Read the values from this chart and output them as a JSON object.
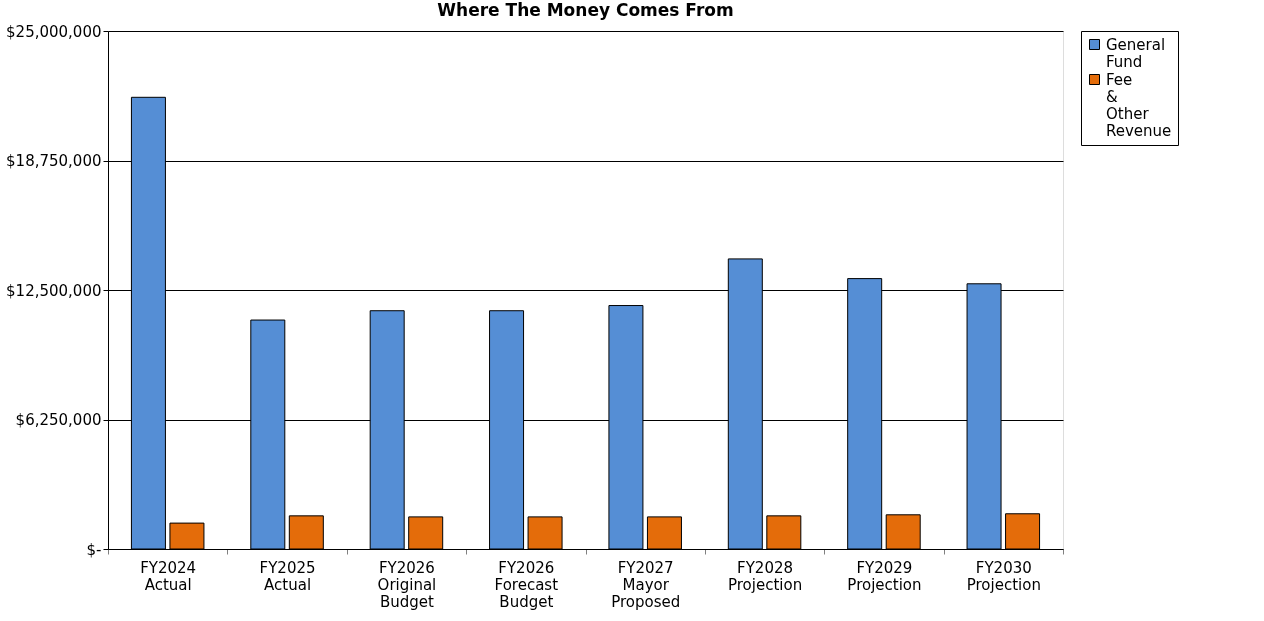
{
  "chart_data": {
    "type": "bar",
    "title": "Where The Money Comes From",
    "categories": [
      "FY2024 Actual",
      "FY2025 Actual",
      "FY2026 Original Budget",
      "FY2026 Forecast Budget",
      "FY2027 Mayor Proposed",
      "FY2028 Projection",
      "FY2029 Projection",
      "FY2030 Projection"
    ],
    "series": [
      {
        "name": "General Fund",
        "color": "#558ed5",
        "values": [
          21800000,
          11050000,
          11500000,
          11500000,
          11750000,
          14000000,
          13050000,
          12800000
        ]
      },
      {
        "name": "Fee & Other Revenue",
        "color": "#e46c0a",
        "values": [
          1250000,
          1600000,
          1550000,
          1550000,
          1550000,
          1600000,
          1650000,
          1700000
        ]
      }
    ],
    "ylim": [
      0,
      25000000
    ],
    "yticks": [
      {
        "value": 0,
        "label": "$-"
      },
      {
        "value": 6250000,
        "label": "$6,250,000"
      },
      {
        "value": 12500000,
        "label": "$12,500,000"
      },
      {
        "value": 18750000,
        "label": "$18,750,000"
      },
      {
        "value": 25000000,
        "label": "$25,000,000"
      }
    ],
    "grid": "y",
    "legend": "right"
  }
}
